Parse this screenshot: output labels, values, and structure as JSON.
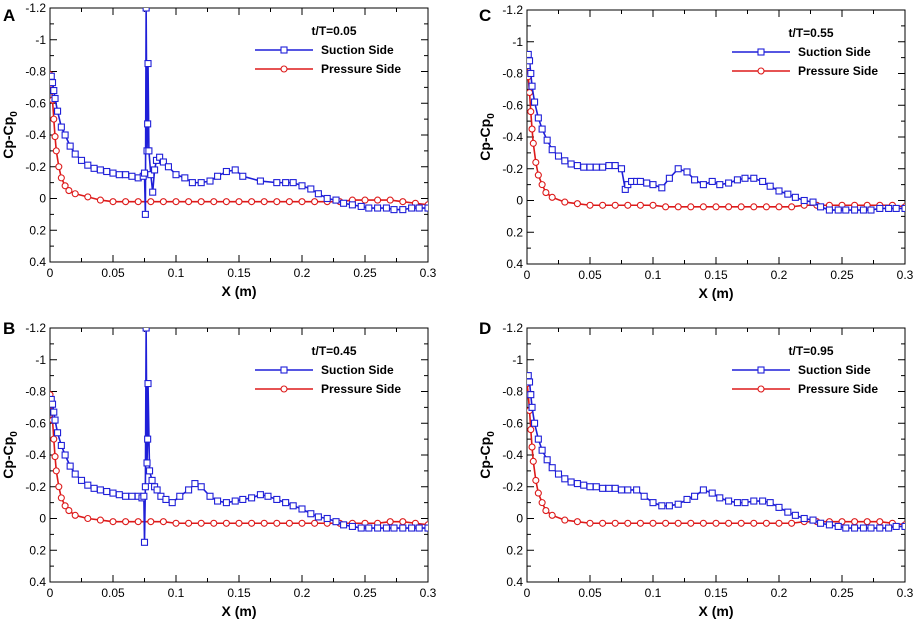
{
  "colors": {
    "suction": "#1f1fd8",
    "pressure": "#dd1a1a",
    "axis": "#000000"
  },
  "chart_data": [
    {
      "type": "line",
      "panel": "A",
      "title": "t/T=0.05",
      "xlabel": "X (m)",
      "ylabel_main": "Cp-Cp",
      "ylabel_sub": "0",
      "xlim": [
        0,
        0.3
      ],
      "ylim": [
        0.4,
        -1.2
      ],
      "y_inverted": true,
      "xticks": [
        0,
        0.05,
        0.1,
        0.15,
        0.2,
        0.25,
        0.3
      ],
      "xtick_labels": [
        "0",
        "0.05",
        "0.1",
        "0.15",
        "0.2",
        "0.25",
        "0.3"
      ],
      "yticks": [
        -1.2,
        -1,
        -0.8,
        -0.6,
        -0.4,
        -0.2,
        0,
        0.2,
        0.4
      ],
      "ytick_labels": [
        "-1.2",
        "-1",
        "-0.8",
        "-0.6",
        "-0.4",
        "-0.2",
        "0",
        "0.2",
        "0.4"
      ],
      "legend": "top-right",
      "series": [
        {
          "name": "Suction Side",
          "marker": "square",
          "x": [
            0,
            0.001,
            0.002,
            0.003,
            0.004,
            0.006,
            0.009,
            0.012,
            0.016,
            0.02,
            0.025,
            0.03,
            0.035,
            0.04,
            0.045,
            0.05,
            0.055,
            0.06,
            0.065,
            0.07,
            0.074,
            0.075,
            0.0757,
            0.0763,
            0.077,
            0.0775,
            0.0778,
            0.0785,
            0.08,
            0.0815,
            0.083,
            0.0845,
            0.087,
            0.09,
            0.094,
            0.1,
            0.107,
            0.113,
            0.12,
            0.127,
            0.133,
            0.14,
            0.147,
            0.153,
            0.167,
            0.18,
            0.187,
            0.193,
            0.2,
            0.207,
            0.213,
            0.22,
            0.227,
            0.233,
            0.24,
            0.247,
            0.253,
            0.26,
            0.267,
            0.273,
            0.28,
            0.287,
            0.293,
            0.3
          ],
          "y": [
            -0.75,
            -0.77,
            -0.73,
            -0.68,
            -0.63,
            -0.55,
            -0.45,
            -0.4,
            -0.33,
            -0.28,
            -0.24,
            -0.21,
            -0.19,
            -0.18,
            -0.17,
            -0.16,
            -0.15,
            -0.15,
            -0.14,
            -0.13,
            -0.14,
            -0.16,
            0.1,
            -1.2,
            -0.3,
            -0.47,
            -0.85,
            -0.3,
            -0.15,
            -0.04,
            -0.18,
            -0.24,
            -0.26,
            -0.23,
            -0.2,
            -0.15,
            -0.13,
            -0.1,
            -0.1,
            -0.11,
            -0.14,
            -0.17,
            -0.18,
            -0.14,
            -0.11,
            -0.1,
            -0.1,
            -0.1,
            -0.08,
            -0.06,
            -0.03,
            0,
            0.01,
            0.03,
            0.04,
            0.05,
            0.06,
            0.06,
            0.06,
            0.07,
            0.07,
            0.06,
            0.06,
            0.06
          ]
        },
        {
          "name": "Pressure Side",
          "marker": "circle",
          "x": [
            0,
            0.001,
            0.002,
            0.003,
            0.004,
            0.005,
            0.007,
            0.009,
            0.012,
            0.015,
            0.02,
            0.03,
            0.04,
            0.05,
            0.06,
            0.07,
            0.08,
            0.09,
            0.1,
            0.11,
            0.12,
            0.13,
            0.14,
            0.15,
            0.16,
            0.17,
            0.18,
            0.19,
            0.2,
            0.21,
            0.22,
            0.23,
            0.24,
            0.25,
            0.26,
            0.27,
            0.28,
            0.29,
            0.3
          ],
          "y": [
            -0.78,
            -0.72,
            -0.62,
            -0.5,
            -0.39,
            -0.3,
            -0.2,
            -0.13,
            -0.08,
            -0.05,
            -0.03,
            -0.01,
            0.01,
            0.02,
            0.02,
            0.02,
            0.02,
            0.02,
            0.02,
            0.02,
            0.02,
            0.02,
            0.02,
            0.02,
            0.02,
            0.02,
            0.02,
            0.02,
            0.02,
            0.02,
            0.02,
            0.02,
            0.01,
            0.01,
            0.01,
            0.01,
            0.02,
            0.03,
            0.04
          ]
        }
      ]
    },
    {
      "type": "line",
      "panel": "C",
      "title": "t/T=0.55",
      "xlabel": "X (m)",
      "ylabel_main": "Cp-Cp",
      "ylabel_sub": "0",
      "xlim": [
        0,
        0.3
      ],
      "ylim": [
        0.4,
        -1.2
      ],
      "y_inverted": true,
      "xticks": [
        0,
        0.05,
        0.1,
        0.15,
        0.2,
        0.25,
        0.3
      ],
      "xtick_labels": [
        "0",
        "0.05",
        "0.1",
        "0.15",
        "0.2",
        "0.25",
        "0.3"
      ],
      "yticks": [
        -1.2,
        -1,
        -0.8,
        -0.6,
        -0.4,
        -0.2,
        0,
        0.2,
        0.4
      ],
      "ytick_labels": [
        "-1.2",
        "-1",
        "-0.8",
        "-0.6",
        "-0.4",
        "-0.2",
        "0",
        "0.2",
        "0.4"
      ],
      "legend": "top-right",
      "series": [
        {
          "name": "Suction Side",
          "marker": "square",
          "x": [
            0,
            0.001,
            0.002,
            0.003,
            0.004,
            0.006,
            0.009,
            0.012,
            0.016,
            0.02,
            0.025,
            0.03,
            0.035,
            0.04,
            0.045,
            0.05,
            0.055,
            0.06,
            0.065,
            0.07,
            0.075,
            0.078,
            0.08,
            0.083,
            0.087,
            0.09,
            0.095,
            0.1,
            0.107,
            0.113,
            0.12,
            0.127,
            0.133,
            0.14,
            0.147,
            0.153,
            0.16,
            0.167,
            0.173,
            0.18,
            0.187,
            0.193,
            0.2,
            0.207,
            0.213,
            0.22,
            0.227,
            0.233,
            0.24,
            0.247,
            0.253,
            0.26,
            0.267,
            0.273,
            0.28,
            0.287,
            0.293,
            0.3
          ],
          "y": [
            -0.85,
            -0.92,
            -0.88,
            -0.8,
            -0.72,
            -0.62,
            -0.52,
            -0.45,
            -0.38,
            -0.32,
            -0.28,
            -0.25,
            -0.23,
            -0.22,
            -0.21,
            -0.21,
            -0.21,
            -0.21,
            -0.22,
            -0.22,
            -0.2,
            -0.07,
            -0.1,
            -0.12,
            -0.12,
            -0.12,
            -0.11,
            -0.1,
            -0.08,
            -0.14,
            -0.2,
            -0.18,
            -0.13,
            -0.1,
            -0.12,
            -0.1,
            -0.11,
            -0.13,
            -0.14,
            -0.14,
            -0.12,
            -0.09,
            -0.06,
            -0.04,
            -0.02,
            0,
            0.01,
            0.04,
            0.06,
            0.06,
            0.06,
            0.06,
            0.06,
            0.06,
            0.05,
            0.05,
            0.05,
            0.05
          ]
        },
        {
          "name": "Pressure Side",
          "marker": "circle",
          "x": [
            0,
            0.001,
            0.002,
            0.003,
            0.004,
            0.005,
            0.007,
            0.009,
            0.012,
            0.015,
            0.02,
            0.03,
            0.04,
            0.05,
            0.06,
            0.07,
            0.08,
            0.09,
            0.1,
            0.11,
            0.12,
            0.13,
            0.14,
            0.15,
            0.16,
            0.17,
            0.18,
            0.19,
            0.2,
            0.21,
            0.22,
            0.23,
            0.24,
            0.25,
            0.26,
            0.27,
            0.28,
            0.29,
            0.3
          ],
          "y": [
            -0.85,
            -0.78,
            -0.68,
            -0.56,
            -0.45,
            -0.36,
            -0.24,
            -0.16,
            -0.1,
            -0.05,
            -0.02,
            0.01,
            0.02,
            0.03,
            0.03,
            0.03,
            0.03,
            0.03,
            0.03,
            0.04,
            0.04,
            0.04,
            0.04,
            0.04,
            0.04,
            0.04,
            0.04,
            0.04,
            0.04,
            0.04,
            0.03,
            0.03,
            0.03,
            0.03,
            0.03,
            0.03,
            0.03,
            0.03,
            0.04
          ]
        }
      ]
    },
    {
      "type": "line",
      "panel": "B",
      "title": "t/T=0.45",
      "xlabel": "X (m)",
      "ylabel_main": "Cp-Cp",
      "ylabel_sub": "0",
      "xlim": [
        0,
        0.3
      ],
      "ylim": [
        0.4,
        -1.2
      ],
      "y_inverted": true,
      "xticks": [
        0,
        0.05,
        0.1,
        0.15,
        0.2,
        0.25,
        0.3
      ],
      "xtick_labels": [
        "0",
        "0.05",
        "0.1",
        "0.15",
        "0.2",
        "0.25",
        "0.3"
      ],
      "yticks": [
        -1.2,
        -1,
        -0.8,
        -0.6,
        -0.4,
        -0.2,
        0,
        0.2,
        0.4
      ],
      "ytick_labels": [
        "-1.2",
        "-1",
        "-0.8",
        "-0.6",
        "-0.4",
        "-0.2",
        "0",
        "0.2",
        "0.4"
      ],
      "legend": "top-right",
      "series": [
        {
          "name": "Suction Side",
          "marker": "square",
          "x": [
            0,
            0.001,
            0.002,
            0.003,
            0.004,
            0.006,
            0.009,
            0.012,
            0.016,
            0.02,
            0.025,
            0.03,
            0.035,
            0.04,
            0.045,
            0.05,
            0.055,
            0.06,
            0.065,
            0.07,
            0.073,
            0.0745,
            0.075,
            0.0757,
            0.0763,
            0.077,
            0.0775,
            0.0778,
            0.079,
            0.081,
            0.083,
            0.085,
            0.088,
            0.092,
            0.097,
            0.103,
            0.11,
            0.115,
            0.12,
            0.127,
            0.133,
            0.14,
            0.147,
            0.153,
            0.16,
            0.167,
            0.173,
            0.18,
            0.187,
            0.193,
            0.2,
            0.207,
            0.213,
            0.22,
            0.227,
            0.233,
            0.24,
            0.247,
            0.253,
            0.26,
            0.267,
            0.273,
            0.28,
            0.287,
            0.293,
            0.3
          ],
          "y": [
            -0.73,
            -0.75,
            -0.72,
            -0.67,
            -0.62,
            -0.54,
            -0.46,
            -0.4,
            -0.33,
            -0.28,
            -0.24,
            -0.21,
            -0.19,
            -0.18,
            -0.17,
            -0.16,
            -0.15,
            -0.14,
            -0.14,
            -0.14,
            -0.13,
            -0.14,
            0.15,
            -0.2,
            -1.2,
            -0.35,
            -0.5,
            -0.85,
            -0.3,
            -0.24,
            -0.2,
            -0.18,
            -0.14,
            -0.12,
            -0.1,
            -0.14,
            -0.18,
            -0.22,
            -0.2,
            -0.14,
            -0.11,
            -0.1,
            -0.11,
            -0.12,
            -0.13,
            -0.15,
            -0.14,
            -0.12,
            -0.1,
            -0.08,
            -0.06,
            -0.03,
            -0.01,
            0,
            0.02,
            0.04,
            0.05,
            0.06,
            0.06,
            0.06,
            0.06,
            0.06,
            0.06,
            0.06,
            0.06,
            0.06
          ]
        },
        {
          "name": "Pressure Side",
          "marker": "circle",
          "x": [
            0,
            0.001,
            0.002,
            0.003,
            0.004,
            0.005,
            0.007,
            0.009,
            0.012,
            0.015,
            0.02,
            0.03,
            0.04,
            0.05,
            0.06,
            0.07,
            0.08,
            0.09,
            0.1,
            0.11,
            0.12,
            0.13,
            0.14,
            0.15,
            0.16,
            0.17,
            0.18,
            0.19,
            0.2,
            0.21,
            0.22,
            0.23,
            0.24,
            0.25,
            0.26,
            0.27,
            0.28,
            0.29,
            0.3
          ],
          "y": [
            -0.78,
            -0.72,
            -0.62,
            -0.5,
            -0.39,
            -0.3,
            -0.2,
            -0.13,
            -0.08,
            -0.05,
            -0.02,
            0,
            0.01,
            0.02,
            0.02,
            0.02,
            0.02,
            0.02,
            0.03,
            0.03,
            0.03,
            0.03,
            0.03,
            0.03,
            0.03,
            0.03,
            0.03,
            0.03,
            0.03,
            0.03,
            0.03,
            0.03,
            0.03,
            0.03,
            0.03,
            0.02,
            0.02,
            0.03,
            0.04
          ]
        }
      ]
    },
    {
      "type": "line",
      "panel": "D",
      "title": "t/T=0.95",
      "xlabel": "X (m)",
      "ylabel_main": "Cp-Cp",
      "ylabel_sub": "0",
      "xlim": [
        0,
        0.3
      ],
      "ylim": [
        0.4,
        -1.2
      ],
      "y_inverted": true,
      "xticks": [
        0,
        0.05,
        0.1,
        0.15,
        0.2,
        0.25,
        0.3
      ],
      "xtick_labels": [
        "0",
        "0.05",
        "0.1",
        "0.15",
        "0.2",
        "0.25",
        "0.3"
      ],
      "yticks": [
        -1.2,
        -1,
        -0.8,
        -0.6,
        -0.4,
        -0.2,
        0,
        0.2,
        0.4
      ],
      "ytick_labels": [
        "-1.2",
        "-1",
        "-0.8",
        "-0.6",
        "-0.4",
        "-0.2",
        "0",
        "0.2",
        "0.4"
      ],
      "legend": "top-right",
      "series": [
        {
          "name": "Suction Side",
          "marker": "square",
          "x": [
            0,
            0.001,
            0.002,
            0.003,
            0.004,
            0.006,
            0.009,
            0.012,
            0.016,
            0.02,
            0.025,
            0.03,
            0.035,
            0.04,
            0.045,
            0.05,
            0.055,
            0.06,
            0.065,
            0.07,
            0.075,
            0.08,
            0.087,
            0.093,
            0.1,
            0.107,
            0.113,
            0.12,
            0.127,
            0.133,
            0.14,
            0.147,
            0.153,
            0.16,
            0.167,
            0.173,
            0.18,
            0.187,
            0.193,
            0.2,
            0.207,
            0.213,
            0.22,
            0.227,
            0.233,
            0.24,
            0.247,
            0.253,
            0.26,
            0.267,
            0.273,
            0.28,
            0.287,
            0.293,
            0.3
          ],
          "y": [
            -0.86,
            -0.9,
            -0.86,
            -0.78,
            -0.7,
            -0.6,
            -0.5,
            -0.43,
            -0.37,
            -0.32,
            -0.28,
            -0.25,
            -0.23,
            -0.22,
            -0.21,
            -0.2,
            -0.2,
            -0.19,
            -0.19,
            -0.19,
            -0.18,
            -0.18,
            -0.18,
            -0.14,
            -0.1,
            -0.08,
            -0.08,
            -0.09,
            -0.12,
            -0.14,
            -0.18,
            -0.16,
            -0.13,
            -0.11,
            -0.1,
            -0.1,
            -0.11,
            -0.11,
            -0.1,
            -0.07,
            -0.04,
            -0.02,
            0,
            0.01,
            0.03,
            0.04,
            0.05,
            0.06,
            0.06,
            0.06,
            0.06,
            0.06,
            0.06,
            0.05,
            0.05
          ]
        },
        {
          "name": "Pressure Side",
          "marker": "circle",
          "x": [
            0,
            0.001,
            0.002,
            0.003,
            0.004,
            0.005,
            0.007,
            0.009,
            0.012,
            0.015,
            0.02,
            0.03,
            0.04,
            0.05,
            0.06,
            0.07,
            0.08,
            0.09,
            0.1,
            0.11,
            0.12,
            0.13,
            0.14,
            0.15,
            0.16,
            0.17,
            0.18,
            0.19,
            0.2,
            0.21,
            0.22,
            0.23,
            0.24,
            0.25,
            0.26,
            0.27,
            0.28,
            0.29,
            0.3
          ],
          "y": [
            -0.85,
            -0.78,
            -0.68,
            -0.56,
            -0.45,
            -0.36,
            -0.24,
            -0.16,
            -0.1,
            -0.05,
            -0.02,
            0.01,
            0.02,
            0.03,
            0.03,
            0.03,
            0.03,
            0.03,
            0.03,
            0.03,
            0.03,
            0.03,
            0.03,
            0.03,
            0.03,
            0.03,
            0.03,
            0.03,
            0.03,
            0.03,
            0.02,
            0.02,
            0.02,
            0.02,
            0.02,
            0.02,
            0.02,
            0.03,
            0.04
          ]
        }
      ]
    }
  ]
}
